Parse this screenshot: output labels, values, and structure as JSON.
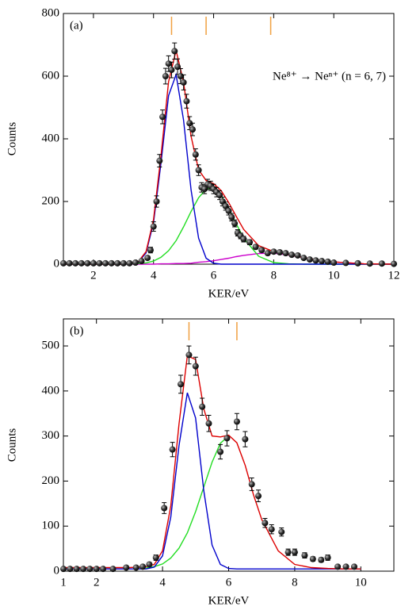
{
  "chart_data": [
    {
      "type": "scatter",
      "panel_label": "(a)",
      "xlabel": "KER/eV",
      "ylabel": "Counts",
      "annotation": "Ne⁸⁺ → Neⁿ⁺ (n = 6, 7)",
      "xlim": [
        1,
        12
      ],
      "ylim": [
        0,
        800
      ],
      "xticks": [
        2,
        4,
        6,
        8,
        10,
        12
      ],
      "yticks": [
        0,
        200,
        400,
        600,
        800
      ],
      "markers": [
        4.6,
        5.75,
        7.9
      ],
      "marker_color": "#f0a040",
      "x": [
        1.0,
        1.2,
        1.4,
        1.6,
        1.8,
        2.0,
        2.2,
        2.4,
        2.6,
        2.8,
        3.0,
        3.2,
        3.4,
        3.6,
        3.8,
        3.9,
        4.0,
        4.1,
        4.2,
        4.3,
        4.4,
        4.5,
        4.6,
        4.7,
        4.8,
        4.9,
        5.0,
        5.1,
        5.2,
        5.3,
        5.4,
        5.5,
        5.6,
        5.7,
        5.8,
        5.9,
        6.0,
        6.1,
        6.2,
        6.3,
        6.4,
        6.5,
        6.6,
        6.7,
        6.8,
        6.9,
        7.0,
        7.2,
        7.4,
        7.6,
        7.8,
        8.0,
        8.2,
        8.4,
        8.6,
        8.8,
        9.0,
        9.2,
        9.4,
        9.6,
        9.8,
        10.0,
        10.4,
        10.8,
        11.2,
        11.6,
        12.0
      ],
      "values": [
        3,
        3,
        3,
        3,
        3,
        3,
        3,
        3,
        3,
        3,
        3,
        3,
        5,
        10,
        20,
        45,
        120,
        200,
        330,
        470,
        600,
        640,
        620,
        680,
        630,
        600,
        580,
        520,
        450,
        430,
        350,
        300,
        245,
        240,
        255,
        250,
        240,
        230,
        220,
        200,
        185,
        170,
        150,
        130,
        100,
        90,
        80,
        70,
        55,
        45,
        35,
        40,
        38,
        35,
        30,
        28,
        20,
        15,
        12,
        10,
        8,
        5,
        4,
        3,
        2,
        2,
        1
      ],
      "errors": [
        2,
        2,
        2,
        2,
        2,
        2,
        2,
        2,
        2,
        2,
        2,
        2,
        3,
        4,
        6,
        9,
        15,
        18,
        20,
        22,
        25,
        25,
        25,
        26,
        25,
        24,
        24,
        22,
        21,
        20,
        18,
        17,
        15,
        15,
        16,
        15,
        15,
        15,
        14,
        14,
        13,
        13,
        12,
        11,
        10,
        9,
        9,
        8,
        7,
        7,
        6,
        6,
        6,
        6,
        5,
        5,
        4,
        4,
        3,
        3,
        3,
        2,
        2,
        2,
        1,
        1,
        1
      ],
      "fit_x": [
        1,
        2,
        3,
        3.5,
        3.75,
        4,
        4.25,
        4.5,
        4.75,
        5,
        5.25,
        5.5,
        5.75,
        6,
        6.25,
        6.5,
        6.75,
        7,
        7.5,
        8,
        8.5,
        9,
        9.5,
        10,
        11,
        12
      ],
      "fits": [
        {
          "color": "#cc00cc",
          "values": [
            0,
            0,
            0,
            0,
            0,
            0,
            1,
            1,
            2,
            2,
            3,
            6,
            8,
            11,
            15,
            19,
            24,
            28,
            34,
            35,
            29,
            21,
            13,
            7,
            1,
            0
          ]
        },
        {
          "color": "#22dd22",
          "values": [
            0,
            0,
            0,
            2,
            4,
            10,
            22,
            43,
            75,
            119,
            168,
            212,
            240,
            243,
            220,
            178,
            129,
            83,
            25,
            5,
            1,
            0,
            0,
            0,
            0,
            0
          ]
        },
        {
          "color": "#0000cc",
          "values": [
            0,
            0,
            0,
            7,
            36,
            132,
            324,
            538,
            605,
            460,
            237,
            83,
            19,
            3,
            0,
            0,
            0,
            0,
            0,
            0,
            0,
            0,
            0,
            0,
            0,
            0
          ]
        },
        {
          "color": "#dd0000",
          "values": [
            0,
            0,
            0,
            9,
            40,
            142,
            347,
            582,
            682,
            581,
            408,
            301,
            267,
            257,
            235,
            197,
            153,
            111,
            59,
            40,
            30,
            21,
            13,
            7,
            1,
            0
          ]
        }
      ]
    },
    {
      "type": "scatter",
      "panel_label": "(b)",
      "xlabel": "KER/eV",
      "ylabel": "Counts",
      "xlim": [
        1,
        11
      ],
      "ylim": [
        0,
        560
      ],
      "xticks": [
        1,
        2,
        4,
        6,
        8,
        10
      ],
      "yticks": [
        0,
        100,
        200,
        300,
        400,
        500
      ],
      "markers": [
        4.8,
        6.25
      ],
      "marker_color": "#f0a040",
      "x": [
        1.0,
        1.2,
        1.4,
        1.6,
        1.8,
        2.0,
        2.2,
        2.5,
        2.9,
        3.2,
        3.4,
        3.6,
        3.8,
        4.05,
        4.3,
        4.55,
        4.8,
        5.0,
        5.2,
        5.4,
        5.75,
        5.95,
        6.25,
        6.5,
        6.7,
        6.9,
        7.1,
        7.3,
        7.6,
        7.8,
        8.0,
        8.3,
        8.55,
        8.8,
        9.0,
        9.3,
        9.55,
        9.8
      ],
      "values": [
        5,
        5,
        5,
        5,
        5,
        5,
        5,
        5,
        8,
        8,
        10,
        15,
        30,
        140,
        270,
        415,
        480,
        455,
        365,
        328,
        265,
        295,
        332,
        293,
        193,
        167,
        107,
        93,
        87,
        42,
        42,
        35,
        27,
        25,
        30,
        10,
        10,
        10
      ],
      "errors": [
        2,
        2,
        2,
        2,
        2,
        2,
        2,
        2,
        3,
        3,
        3,
        4,
        6,
        12,
        16,
        20,
        20,
        20,
        19,
        18,
        16,
        17,
        18,
        17,
        14,
        13,
        10,
        10,
        9,
        7,
        7,
        6,
        5,
        5,
        6,
        3,
        3,
        3
      ],
      "fit_x": [
        1,
        2,
        3,
        3.5,
        3.75,
        4,
        4.25,
        4.5,
        4.75,
        5,
        5.25,
        5.5,
        5.75,
        6,
        6.25,
        6.5,
        6.75,
        7,
        7.5,
        8,
        8.5,
        9,
        9.5,
        10
      ],
      "fits": [
        {
          "color": "#22dd22",
          "values": [
            null,
            null,
            null,
            7,
            10,
            16,
            29,
            51,
            85,
            132,
            187,
            242,
            284,
            300,
            null,
            null,
            null,
            null,
            null,
            null,
            null,
            null,
            null,
            null
          ]
        },
        {
          "color": "#0000cc",
          "values": [
            5,
            5,
            5,
            5,
            9,
            34,
            120,
            279,
            396,
            340,
            178,
            58,
            15,
            6,
            5,
            5,
            5,
            5,
            5,
            5,
            5,
            5,
            5,
            5
          ]
        },
        {
          "color": "#dd0000",
          "values": [
            8,
            8,
            8,
            10,
            15,
            45,
            145,
            327,
            478,
            470,
            360,
            300,
            298,
            302,
            285,
            235,
            170,
            115,
            45,
            15,
            8,
            6,
            5,
            5
          ]
        }
      ]
    }
  ]
}
